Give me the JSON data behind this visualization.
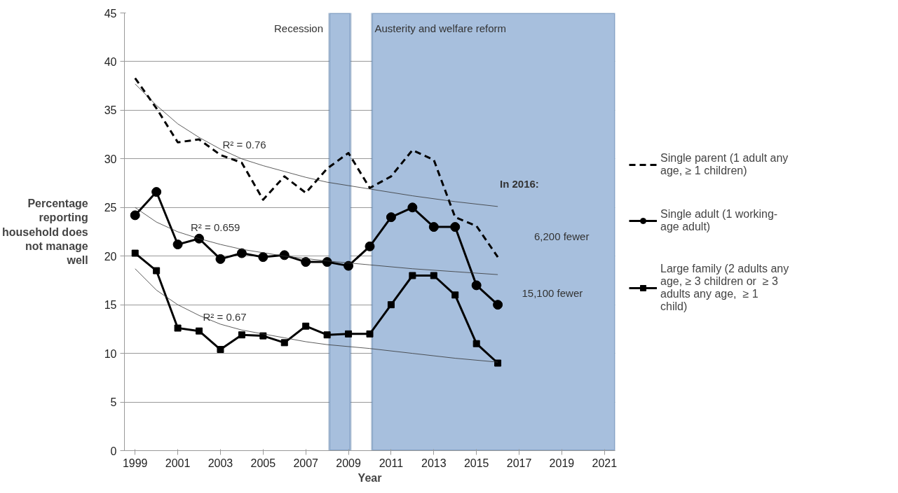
{
  "chart_data": {
    "type": "line",
    "xlabel": "Year",
    "ylabel": "Percentage reporting household does not manage well",
    "x": [
      1999,
      2000,
      2001,
      2002,
      2003,
      2004,
      2005,
      2006,
      2007,
      2008,
      2009,
      2010,
      2011,
      2012,
      2013,
      2014,
      2015,
      2016
    ],
    "series": [
      {
        "name": "Single parent (1 adult any age, ≥ 1 children)",
        "color": "#000000",
        "line_style": "dashed",
        "marker": "none",
        "values": [
          38.3,
          35.2,
          31.7,
          32.0,
          30.4,
          29.6,
          25.8,
          28.2,
          26.5,
          29.0,
          30.6,
          27.0,
          28.2,
          30.9,
          29.9,
          24.0,
          23.1,
          19.9
        ]
      },
      {
        "name": "Single adult (1 working-age adult)",
        "color": "#000000",
        "line_style": "solid",
        "marker": "circle",
        "values": [
          24.2,
          26.6,
          21.2,
          21.8,
          19.7,
          20.3,
          19.9,
          20.1,
          19.4,
          19.4,
          19.0,
          21.0,
          24.0,
          25.0,
          23.0,
          23.0,
          17.0,
          15.0
        ]
      },
      {
        "name": "Large family (2 adults any age, ≥ 3 children or  ≥ 3 adults any age,  ≥ 1 child)",
        "color": "#000000",
        "line_style": "solid",
        "marker": "square",
        "values": [
          20.3,
          18.5,
          12.6,
          12.3,
          10.4,
          11.9,
          11.8,
          11.1,
          12.8,
          11.9,
          12.0,
          12.0,
          15.0,
          18.0,
          18.0,
          16.0,
          11.0,
          9.0
        ]
      },
      {
        "type": "line",
        "color": "#333333",
        "line_style": "solid",
        "marker": "none",
        "x": [
          1999,
          2000,
          2001,
          2002,
          2003,
          2004,
          2005,
          2006,
          2007,
          2008,
          2010,
          2012,
          2014,
          2016
        ],
        "values": [
          37.7,
          35.5,
          33.6,
          32.2,
          31.0,
          30.0,
          29.3,
          28.7,
          28.1,
          27.6,
          26.9,
          26.2,
          25.6,
          25.1
        ]
      },
      {
        "type": "line",
        "color": "#333333",
        "line_style": "solid",
        "marker": "none",
        "x": [
          1999,
          2000,
          2001,
          2002,
          2003,
          2004,
          2006,
          2008,
          2010,
          2012,
          2014,
          2016
        ],
        "values": [
          25.0,
          23.5,
          22.5,
          21.8,
          21.2,
          20.7,
          20.0,
          19.5,
          19.1,
          18.7,
          18.4,
          18.1
        ]
      },
      {
        "type": "line",
        "color": "#333333",
        "line_style": "solid",
        "marker": "none",
        "x": [
          1999,
          2000,
          2001,
          2002,
          2003,
          2004,
          2005,
          2006,
          2007,
          2008,
          2010,
          2012,
          2014,
          2016
        ],
        "values": [
          18.7,
          16.5,
          15.0,
          13.9,
          13.0,
          12.4,
          12.0,
          11.6,
          11.2,
          10.9,
          10.5,
          10.0,
          9.5,
          9.1
        ]
      }
    ],
    "xlim": [
      1998.5,
      2021.5
    ],
    "xticks": [
      1999,
      2001,
      2003,
      2005,
      2007,
      2009,
      2011,
      2013,
      2015,
      2017,
      2019,
      2021
    ],
    "ylim": [
      0,
      45
    ],
    "yticks": [
      0,
      5,
      10,
      15,
      20,
      25,
      30,
      35,
      40,
      45
    ],
    "grid": "y",
    "legend": "right",
    "bands": [
      {
        "axis": "x",
        "from": 2008.1,
        "to": 2009.1,
        "color": "#a7bfdd"
      },
      {
        "axis": "x",
        "from": 2010.1,
        "to": 2021.5,
        "color": "#a7bfdd"
      }
    ],
    "annotations": [
      "Recession",
      "Austerity and welfare reform",
      "R² = 0.76",
      "R² = 0.659",
      "R² = 0.67",
      "In 2016:",
      "6,200 fewer",
      "15,100 fewer"
    ]
  }
}
